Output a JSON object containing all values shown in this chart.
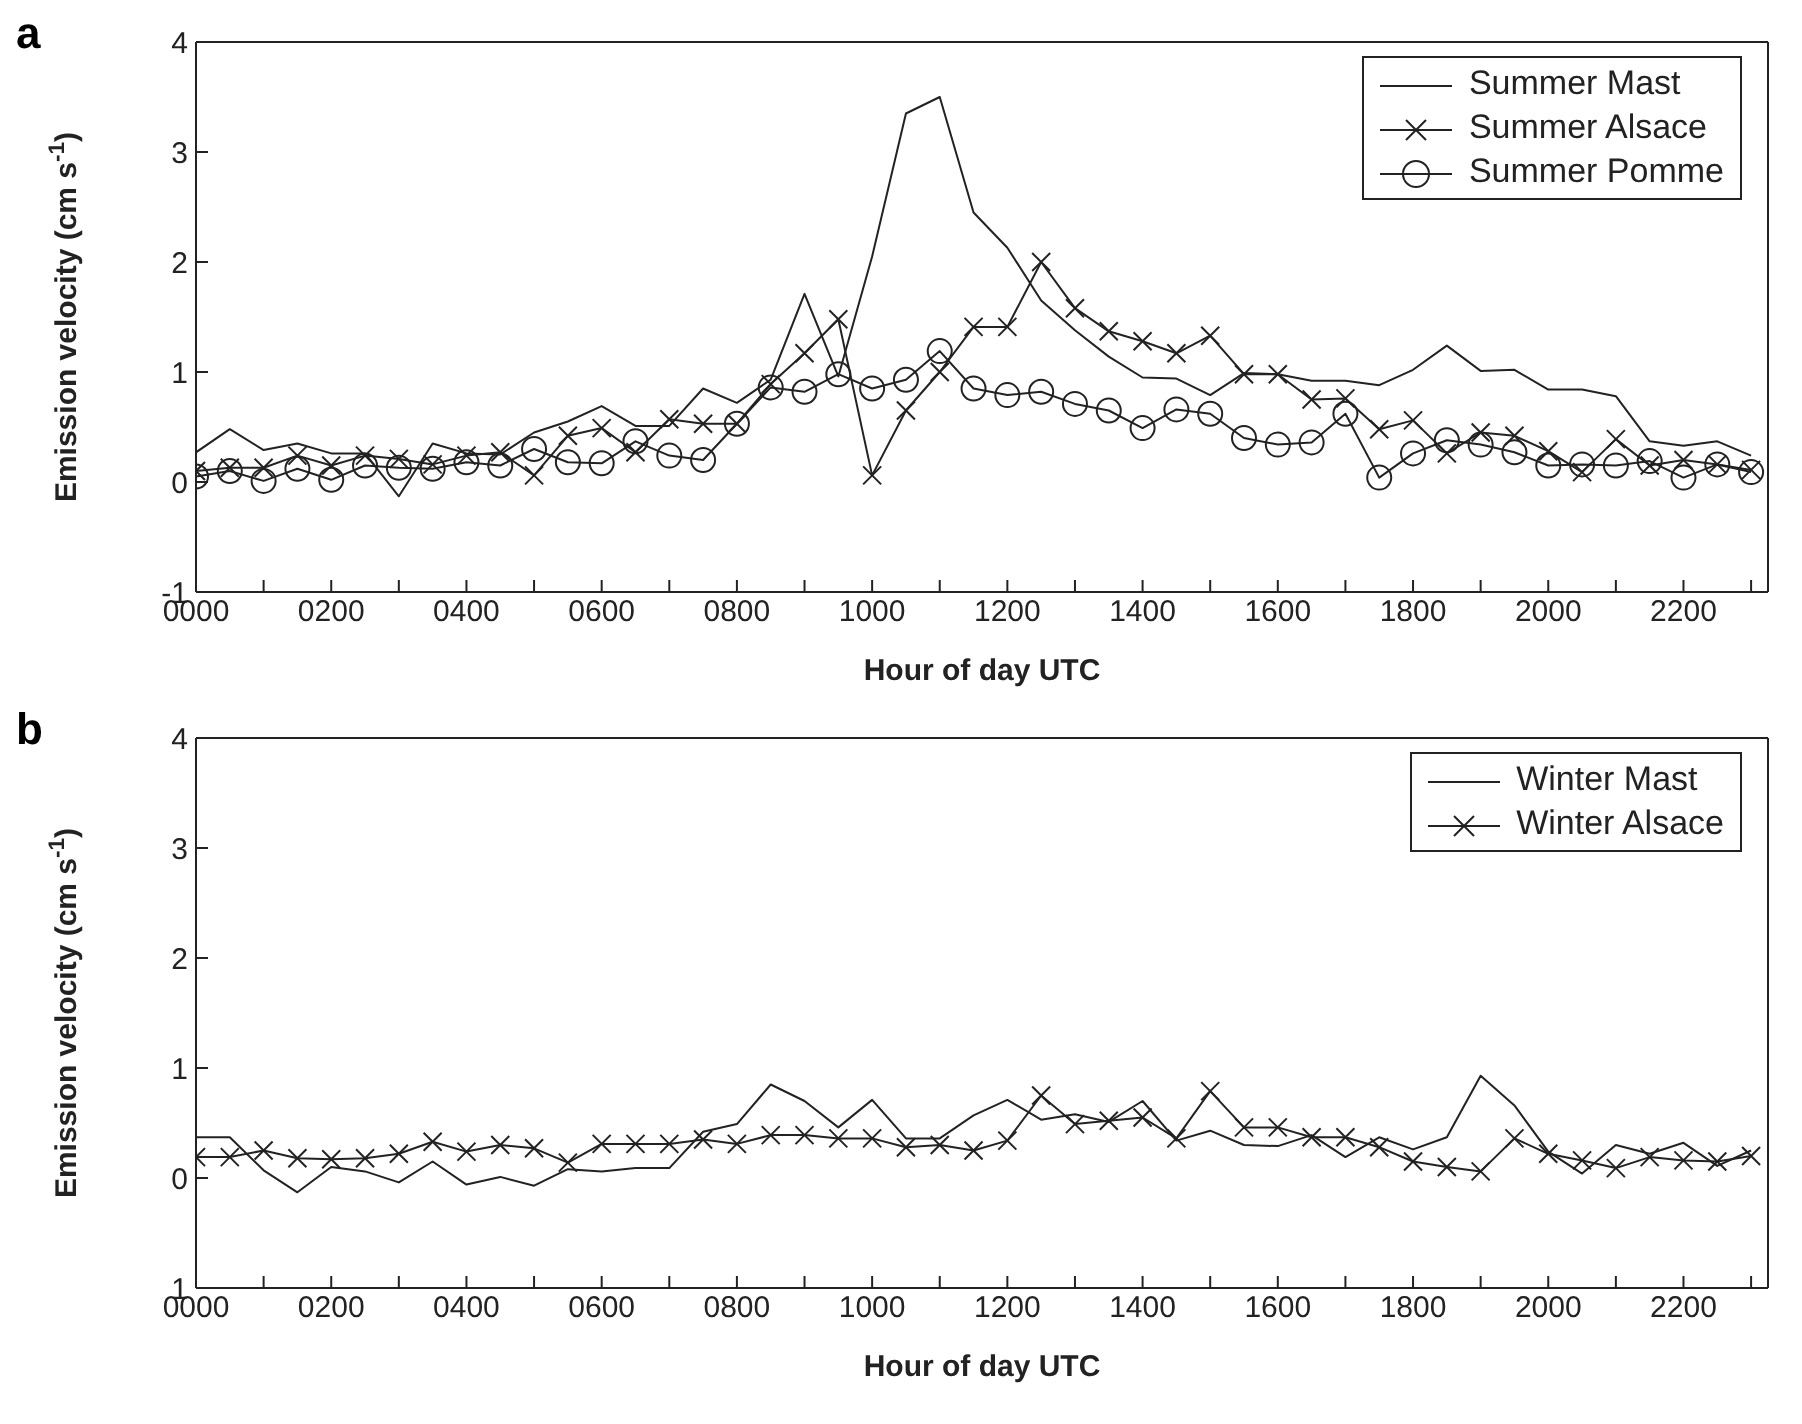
{
  "chart_data": [
    {
      "type": "line",
      "title": "a",
      "xlabel": "Hour of day UTC",
      "ylabel": "Emission velocity (cm s$^{-1}$)",
      "legend": "top right",
      "categories": [
        "0000",
        null,
        null,
        null,
        "0200",
        null,
        null,
        null,
        "0400",
        null,
        null,
        null,
        "0600",
        null,
        null,
        null,
        "0800",
        null,
        null,
        null,
        "1000",
        null,
        null,
        null,
        "1200",
        null,
        null,
        null,
        "1400",
        null,
        null,
        null,
        "1600",
        null,
        null,
        null,
        "1800",
        null,
        null,
        null,
        "2000",
        null,
        null,
        null,
        "2200",
        null,
        null
      ],
      "ylim": [
        -1,
        4
      ],
      "yticks": [
        -1,
        0,
        1,
        2,
        3,
        4
      ],
      "series": [
        {
          "name": "Summer Mast",
          "color": "#222222",
          "marker": "none",
          "values": [
            0.27,
            0.48,
            0.29,
            0.35,
            0.26,
            0.26,
            -0.13,
            0.35,
            0.26,
            0.25,
            0.45,
            0.55,
            0.69,
            0.51,
            0.51,
            0.85,
            0.72,
            0.93,
            1.71,
            0.96,
            2.05,
            3.35,
            3.5,
            2.45,
            2.13,
            1.65,
            1.38,
            1.14,
            0.95,
            0.94,
            0.79,
            0.99,
            0.98,
            0.92,
            0.92,
            0.88,
            1.02,
            1.24,
            1.01,
            1.02,
            0.84,
            0.84,
            0.78,
            0.37,
            0.33,
            0.37,
            0.24
          ]
        },
        {
          "name": "Summer Alsace",
          "color": "#222222",
          "marker": "cross",
          "values": [
            0.1,
            0.13,
            0.13,
            0.24,
            0.15,
            0.24,
            0.21,
            0.16,
            0.24,
            0.27,
            0.06,
            0.42,
            0.49,
            0.27,
            0.57,
            0.53,
            0.53,
            0.89,
            1.17,
            1.48,
            0.06,
            0.65,
            1.0,
            1.41,
            1.41,
            2.0,
            1.58,
            1.37,
            1.28,
            1.17,
            1.33,
            0.98,
            0.98,
            0.75,
            0.76,
            0.48,
            0.56,
            0.26,
            0.45,
            0.42,
            0.28,
            0.09,
            0.39,
            0.15,
            0.2,
            0.16,
            0.11
          ]
        },
        {
          "name": "Summer Pomme",
          "color": "#222222",
          "marker": "circle",
          "values": [
            0.05,
            0.1,
            0.01,
            0.12,
            0.02,
            0.15,
            0.13,
            0.12,
            0.18,
            0.15,
            0.3,
            0.18,
            0.17,
            0.37,
            0.24,
            0.2,
            0.53,
            0.86,
            0.82,
            0.98,
            0.85,
            0.93,
            1.19,
            0.85,
            0.79,
            0.82,
            0.71,
            0.65,
            0.49,
            0.66,
            0.62,
            0.4,
            0.34,
            0.36,
            0.62,
            0.04,
            0.26,
            0.38,
            0.34,
            0.27,
            0.15,
            0.16,
            0.15,
            0.19,
            0.04,
            0.16,
            0.09
          ]
        }
      ]
    },
    {
      "type": "line",
      "title": "b",
      "xlabel": "Hour of day UTC",
      "ylabel": "Emission velocity (cm s$^{-1}$)",
      "legend": "top right",
      "categories": [
        "0000",
        null,
        null,
        null,
        "0200",
        null,
        null,
        null,
        "0400",
        null,
        null,
        null,
        "0600",
        null,
        null,
        null,
        "0800",
        null,
        null,
        null,
        "1000",
        null,
        null,
        null,
        "1200",
        null,
        null,
        null,
        "1400",
        null,
        null,
        null,
        "1600",
        null,
        null,
        null,
        "1800",
        null,
        null,
        null,
        "2000",
        null,
        null,
        null,
        "2200",
        null,
        null
      ],
      "ylim": [
        -1,
        4
      ],
      "yticks": [
        {
          "value": -1,
          "label": "1"
        },
        0,
        1,
        2,
        3,
        4
      ],
      "series": [
        {
          "name": "Winter Mast",
          "color": "#222222",
          "marker": "none",
          "values": [
            0.37,
            0.37,
            0.07,
            -0.13,
            0.1,
            0.06,
            -0.04,
            0.15,
            -0.06,
            0.01,
            -0.07,
            0.08,
            0.06,
            0.09,
            0.09,
            0.42,
            0.49,
            0.85,
            0.7,
            0.46,
            0.71,
            0.36,
            0.36,
            0.57,
            0.71,
            0.53,
            0.58,
            0.51,
            0.7,
            0.34,
            0.43,
            0.3,
            0.29,
            0.39,
            0.19,
            0.37,
            0.26,
            0.37,
            0.93,
            0.66,
            0.24,
            0.04,
            0.3,
            0.22,
            0.32,
            0.11,
            0.25
          ]
        },
        {
          "name": "Winter Alsace",
          "color": "#222222",
          "marker": "cross",
          "values": [
            0.19,
            0.19,
            0.25,
            0.18,
            0.17,
            0.18,
            0.22,
            0.33,
            0.24,
            0.3,
            0.27,
            0.14,
            0.31,
            0.31,
            0.31,
            0.35,
            0.31,
            0.39,
            0.39,
            0.36,
            0.36,
            0.28,
            0.3,
            0.25,
            0.34,
            0.75,
            0.49,
            0.52,
            0.55,
            0.36,
            0.79,
            0.46,
            0.46,
            0.37,
            0.37,
            0.28,
            0.15,
            0.1,
            0.06,
            0.36,
            0.22,
            0.16,
            0.09,
            0.19,
            0.16,
            0.15,
            0.2
          ]
        }
      ]
    }
  ]
}
